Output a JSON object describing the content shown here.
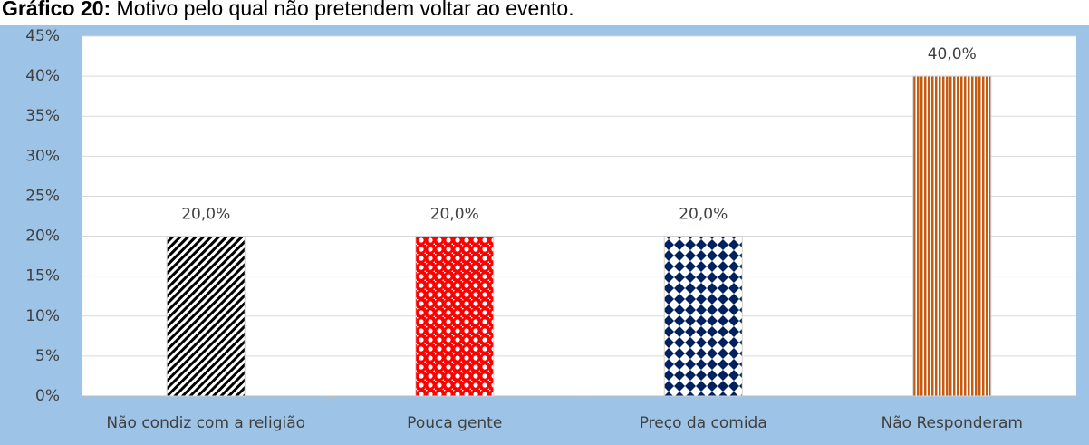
{
  "chart_data": {
    "type": "bar",
    "title_label": "Gráfico 20:",
    "title": "Motivo pelo qual não pretendem voltar ao evento.",
    "categories": [
      "Não condiz com a religião",
      "Pouca gente",
      "Preço da comida",
      "Não Responderam"
    ],
    "values": [
      20,
      20,
      20,
      40
    ],
    "value_labels": [
      "20,0%",
      "20,0%",
      "20,0%",
      "40,0%"
    ],
    "colors": [
      "#000000",
      "#ff0000",
      "#002060",
      "#c55a11"
    ],
    "ylim": [
      0,
      45
    ],
    "yticks": [
      {
        "value": 0,
        "label": "0%"
      },
      {
        "value": 5,
        "label": "5%"
      },
      {
        "value": 10,
        "label": "10%"
      },
      {
        "value": 15,
        "label": "15%"
      },
      {
        "value": 20,
        "label": "20%"
      },
      {
        "value": 25,
        "label": "25%"
      },
      {
        "value": 30,
        "label": "30%"
      },
      {
        "value": 35,
        "label": "35%"
      },
      {
        "value": 40,
        "label": "40%"
      },
      {
        "value": 45,
        "label": "45%"
      }
    ],
    "grid": true
  }
}
